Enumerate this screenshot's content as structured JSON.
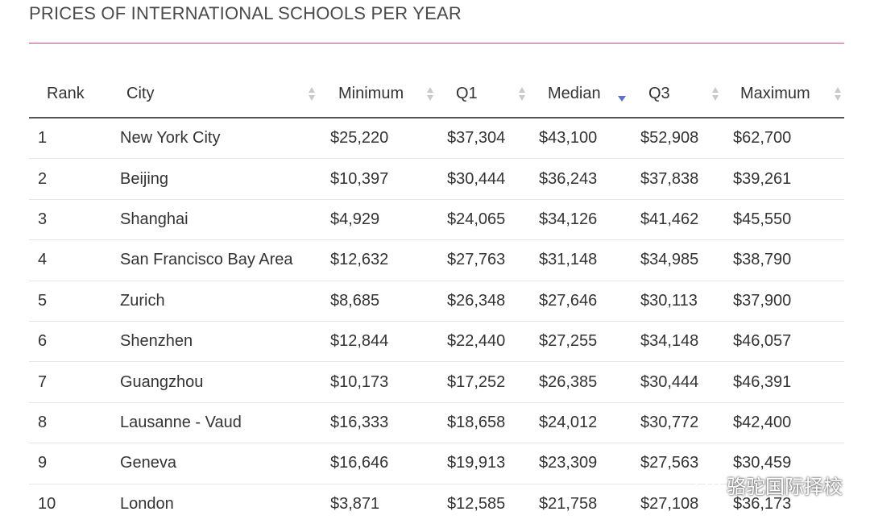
{
  "page": {
    "title": "PRICES OF INTERNATIONAL SCHOOLS PER YEAR"
  },
  "table": {
    "columns": {
      "rank": "Rank",
      "city": "City",
      "minimum": "Minimum",
      "q1": "Q1",
      "median": "Median",
      "q3": "Q3",
      "maximum": "Maximum"
    },
    "sorted_by": "Median",
    "sort_direction": "descending",
    "rows": [
      {
        "rank": "1",
        "city": "New York City",
        "minimum": "$25,220",
        "q1": "$37,304",
        "median": "$43,100",
        "q3": "$52,908",
        "maximum": "$62,700"
      },
      {
        "rank": "2",
        "city": "Beijing",
        "minimum": "$10,397",
        "q1": "$30,444",
        "median": "$36,243",
        "q3": "$37,838",
        "maximum": "$39,261"
      },
      {
        "rank": "3",
        "city": "Shanghai",
        "minimum": "$4,929",
        "q1": "$24,065",
        "median": "$34,126",
        "q3": "$41,462",
        "maximum": "$45,550"
      },
      {
        "rank": "4",
        "city": "San Francisco Bay Area",
        "minimum": "$12,632",
        "q1": "$27,763",
        "median": "$31,148",
        "q3": "$34,985",
        "maximum": "$38,790"
      },
      {
        "rank": "5",
        "city": "Zurich",
        "minimum": "$8,685",
        "q1": "$26,348",
        "median": "$27,646",
        "q3": "$30,113",
        "maximum": "$37,900"
      },
      {
        "rank": "6",
        "city": "Shenzhen",
        "minimum": "$12,844",
        "q1": "$22,440",
        "median": "$27,255",
        "q3": "$34,148",
        "maximum": "$46,057"
      },
      {
        "rank": "7",
        "city": "Guangzhou",
        "minimum": "$10,173",
        "q1": "$17,252",
        "median": "$26,385",
        "q3": "$30,444",
        "maximum": "$46,391"
      },
      {
        "rank": "8",
        "city": "Lausanne - Vaud",
        "minimum": "$16,333",
        "q1": "$18,658",
        "median": "$24,012",
        "q3": "$30,772",
        "maximum": "$42,400"
      },
      {
        "rank": "9",
        "city": "Geneva",
        "minimum": "$16,646",
        "q1": "$19,913",
        "median": "$23,309",
        "q3": "$27,563",
        "maximum": "$30,459"
      },
      {
        "rank": "10",
        "city": "London",
        "minimum": "$3,871",
        "q1": "$12,585",
        "median": "$21,758",
        "q3": "$27,108",
        "maximum": "$36,173"
      }
    ]
  },
  "watermark": {
    "text": "骆驼国际择校",
    "icon": "wechat-icon"
  },
  "colors": {
    "title_rule": "#e0476e",
    "sort_active": "#5b6fd8",
    "sort_inactive": "#c9c9c9",
    "text": "#333333"
  }
}
